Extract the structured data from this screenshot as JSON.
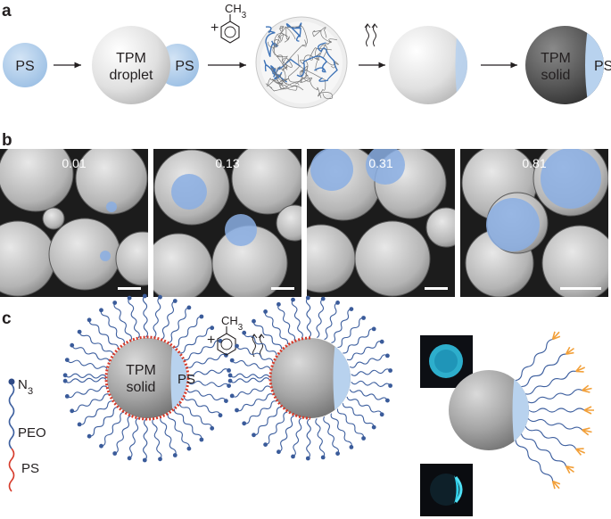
{
  "panels": {
    "a": {
      "letter": "a",
      "ps_label": "PS",
      "droplet_label_line1": "TPM",
      "droplet_label_line2": "droplet",
      "droplet_ps_label": "PS",
      "plus_sign": "+",
      "reagent_label": "CH3",
      "solid_label_line1": "TPM",
      "solid_label_line2": "solid",
      "solid_ps_label": "PS",
      "heat_icon": "heat-wavy-arrows-icon",
      "arrow_icon": "right-arrow-icon"
    },
    "b": {
      "letter": "b",
      "micrographs": [
        {
          "value_label": "0.01"
        },
        {
          "value_label": "0.13"
        },
        {
          "value_label": "0.31"
        },
        {
          "value_label": "0.81"
        }
      ]
    },
    "c": {
      "letter": "c",
      "chain_end_label": "N3",
      "chain_mid_label": "PEO",
      "chain_tail_label": "PS",
      "particle_label_line1": "TPM",
      "particle_label_line2": "solid",
      "particle_ps_label": "PS",
      "plus_sign": "+",
      "reagent_label": "CH3",
      "heat_icon": "heat-wavy-arrows-icon"
    }
  },
  "colors": {
    "ps_blue": "#a9c8e8",
    "tpm_light": "#e4e4e4",
    "tpm_dark": "#555555",
    "peo_chain": "#3c5e9e",
    "ps_chain": "#d63a2a",
    "tether_tip": "#f2a03a",
    "micro_blue": "#8aaee3",
    "fluor_cyan": "#2fb7d6"
  }
}
